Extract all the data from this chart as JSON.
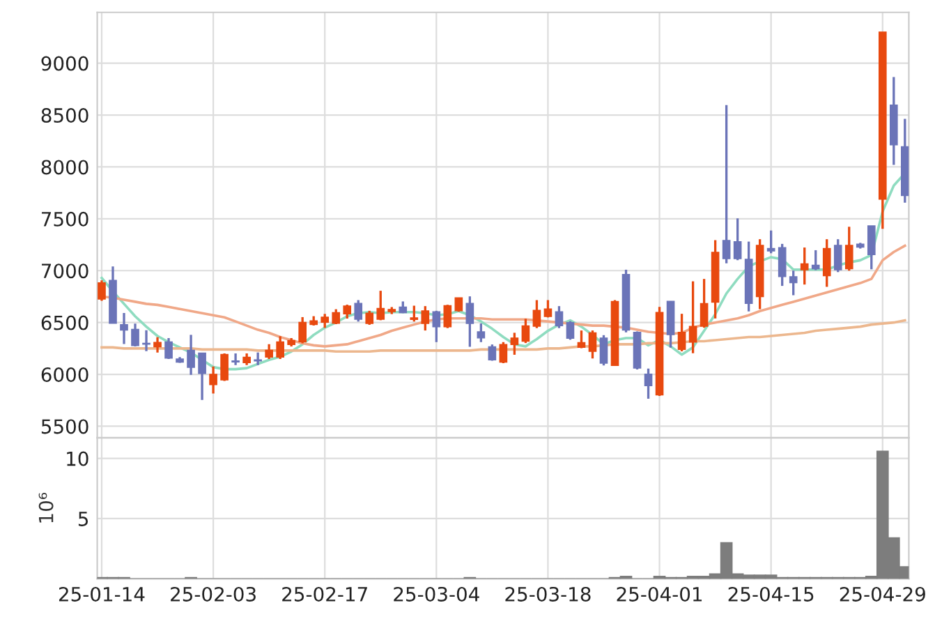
{
  "chart_data": [
    {
      "type": "candlestick",
      "categories": [
        null,
        null,
        null,
        null,
        null,
        null,
        null,
        null,
        null,
        null,
        null,
        null,
        null,
        null,
        null,
        null,
        null,
        null,
        null,
        null,
        null,
        null,
        null,
        null,
        null,
        null,
        null,
        null,
        null,
        null,
        null,
        null,
        null,
        null,
        null,
        null,
        null,
        null,
        null,
        null,
        null,
        null,
        null,
        null,
        null,
        null,
        null,
        null,
        null,
        null,
        null,
        null,
        null,
        null,
        null,
        null,
        null,
        null,
        null,
        null,
        null,
        null,
        null,
        null,
        null,
        null,
        null,
        null,
        null,
        null,
        null,
        null,
        null
      ],
      "ohlc": [
        [
          6726,
          6906,
          6709,
          6883
        ],
        [
          6906,
          7040,
          6493,
          6493
        ],
        [
          6480,
          6592,
          6292,
          6426
        ],
        [
          6435,
          6489,
          6269,
          6278
        ],
        [
          6300,
          6426,
          6224,
          6290
        ],
        [
          6265,
          6359,
          6211,
          6309
        ],
        [
          6314,
          6350,
          6148,
          6157
        ],
        [
          6148,
          6166,
          6112,
          6117
        ],
        [
          6233,
          6381,
          5996,
          6067
        ],
        [
          6206,
          6206,
          5753,
          6009
        ],
        [
          5901,
          6076,
          5816,
          6000
        ],
        [
          5946,
          6202,
          5937,
          6193
        ],
        [
          6130,
          6202,
          6090,
          6120
        ],
        [
          6112,
          6202,
          6090,
          6166
        ],
        [
          6140,
          6211,
          6090,
          6130
        ],
        [
          6166,
          6291,
          6148,
          6233
        ],
        [
          6166,
          6368,
          6148,
          6314
        ],
        [
          6287,
          6350,
          6269,
          6327
        ],
        [
          6314,
          6552,
          6300,
          6502
        ],
        [
          6480,
          6561,
          6471,
          6516
        ],
        [
          6502,
          6583,
          6448,
          6552
        ],
        [
          6493,
          6628,
          6484,
          6596
        ],
        [
          6583,
          6672,
          6538,
          6659
        ],
        [
          6685,
          6716,
          6509,
          6531
        ],
        [
          6491,
          6613,
          6478,
          6590
        ],
        [
          6531,
          6806,
          6522,
          6635
        ],
        [
          6604,
          6649,
          6581,
          6626
        ],
        [
          6649,
          6703,
          6590,
          6595
        ],
        [
          6530,
          6662,
          6509,
          6545
        ],
        [
          6491,
          6658,
          6423,
          6613
        ],
        [
          6604,
          6613,
          6311,
          6459
        ],
        [
          6459,
          6671,
          6446,
          6662
        ],
        [
          6613,
          6739,
          6604,
          6739
        ],
        [
          6685,
          6752,
          6266,
          6491
        ],
        [
          6410,
          6491,
          6311,
          6351
        ],
        [
          6266,
          6288,
          6131,
          6140
        ],
        [
          6117,
          6311,
          6108,
          6288
        ],
        [
          6288,
          6401,
          6189,
          6351
        ],
        [
          6320,
          6536,
          6302,
          6468
        ],
        [
          6464,
          6716,
          6446,
          6617
        ],
        [
          6558,
          6716,
          6549,
          6631
        ],
        [
          6604,
          6658,
          6446,
          6468
        ],
        [
          6500,
          6513,
          6334,
          6347
        ],
        [
          6261,
          6423,
          6252,
          6306
        ],
        [
          6221,
          6423,
          6153,
          6401
        ],
        [
          6351,
          6378,
          6086,
          6108
        ],
        [
          6086,
          6716,
          6086,
          6703
        ],
        [
          6964,
          7009,
          6405,
          6427
        ],
        [
          6405,
          6414,
          6047,
          6061
        ],
        [
          6002,
          6056,
          5765,
          5891
        ],
        [
          5801,
          6651,
          5792,
          6597
        ],
        [
          6705,
          6705,
          6258,
          6383
        ],
        [
          6240,
          6584,
          6222,
          6405
        ],
        [
          6311,
          6897,
          6204,
          6463
        ],
        [
          6463,
          6920,
          6450,
          6683
        ],
        [
          6696,
          7294,
          6539,
          7177
        ],
        [
          7291,
          8597,
          7070,
          7115
        ],
        [
          7280,
          7504,
          7101,
          7115
        ],
        [
          7110,
          7280,
          6607,
          6683
        ],
        [
          6750,
          7303,
          6629,
          7244
        ],
        [
          7213,
          7387,
          7168,
          7190
        ],
        [
          7223,
          7258,
          6853,
          6942
        ],
        [
          6942,
          7000,
          6763,
          6884
        ],
        [
          7008,
          7223,
          6866,
          7066
        ],
        [
          7053,
          7197,
          7005,
          7018
        ],
        [
          6951,
          7303,
          6844,
          7213
        ],
        [
          7244,
          7303,
          6986,
          7008
        ],
        [
          7018,
          7423,
          7000,
          7244
        ],
        [
          7255,
          7268,
          7213,
          7227
        ],
        [
          7432,
          7432,
          7013,
          7155
        ],
        [
          7689,
          9300,
          7403,
          9300
        ],
        [
          8597,
          8866,
          8020,
          8212
        ],
        [
          8195,
          8463,
          7656,
          7724
        ]
      ],
      "colors": [
        "#e8490f",
        "#6b74b8",
        "#6b74b8",
        "#6b74b8",
        "#6b74b8",
        "#e8490f",
        "#6b74b8",
        "#6b74b8",
        "#6b74b8",
        "#6b74b8",
        "#e8490f",
        "#e8490f",
        "#6b74b8",
        "#e8490f",
        "#6b74b8",
        "#e8490f",
        "#e8490f",
        "#e8490f",
        "#e8490f",
        "#e8490f",
        "#e8490f",
        "#e8490f",
        "#e8490f",
        "#6b74b8",
        "#e8490f",
        "#e8490f",
        "#e8490f",
        "#6b74b8",
        "#e8490f",
        "#e8490f",
        "#6b74b8",
        "#e8490f",
        "#e8490f",
        "#6b74b8",
        "#6b74b8",
        "#6b74b8",
        "#e8490f",
        "#e8490f",
        "#e8490f",
        "#e8490f",
        "#e8490f",
        "#6b74b8",
        "#6b74b8",
        "#e8490f",
        "#e8490f",
        "#6b74b8",
        "#e8490f",
        "#6b74b8",
        "#6b74b8",
        "#6b74b8",
        "#e8490f",
        "#6b74b8",
        "#e8490f",
        "#e8490f",
        "#e8490f",
        "#e8490f",
        "#6b74b8",
        "#6b74b8",
        "#6b74b8",
        "#e8490f",
        "#6b74b8",
        "#6b74b8",
        "#6b74b8",
        "#e8490f",
        "#6b74b8",
        "#e8490f",
        "#6b74b8",
        "#e8490f",
        "#6b74b8",
        "#6b74b8",
        "#e8490f",
        "#6b74b8",
        "#6b74b8"
      ],
      "series": [
        {
          "type": "line",
          "color": "#8fdcc0",
          "values": [
            6930,
            6800,
            6680,
            6560,
            6460,
            6370,
            6310,
            6260,
            6210,
            6140,
            6070,
            6050,
            6050,
            6060,
            6100,
            6140,
            6170,
            6220,
            6290,
            6380,
            6450,
            6500,
            6560,
            6590,
            6600,
            6590,
            6600,
            6600,
            6600,
            6590,
            6570,
            6580,
            6610,
            6570,
            6510,
            6440,
            6360,
            6290,
            6270,
            6340,
            6420,
            6480,
            6520,
            6460,
            6380,
            6290,
            6330,
            6350,
            6350,
            6280,
            6330,
            6270,
            6190,
            6260,
            6420,
            6580,
            6780,
            6920,
            7040,
            7090,
            7130,
            7110,
            7010,
            7010,
            7010,
            7010,
            7050,
            7080,
            7100,
            7150,
            7570,
            7820,
            7940
          ]
        },
        {
          "type": "line",
          "color": "#f0a888",
          "values": [
            6750,
            6740,
            6720,
            6700,
            6680,
            6670,
            6650,
            6630,
            6610,
            6590,
            6570,
            6550,
            6510,
            6470,
            6430,
            6400,
            6360,
            6330,
            6300,
            6280,
            6270,
            6280,
            6290,
            6320,
            6350,
            6380,
            6420,
            6450,
            6480,
            6510,
            6530,
            6540,
            6540,
            6540,
            6540,
            6530,
            6530,
            6530,
            6530,
            6520,
            6510,
            6500,
            6490,
            6480,
            6470,
            6470,
            6460,
            6450,
            6430,
            6410,
            6400,
            6390,
            6400,
            6450,
            6480,
            6500,
            6520,
            6540,
            6570,
            6610,
            6640,
            6670,
            6700,
            6730,
            6760,
            6790,
            6820,
            6850,
            6880,
            6920,
            7100,
            7180,
            7240
          ]
        },
        {
          "type": "line",
          "color": "#ecb78e",
          "values": [
            6260,
            6260,
            6250,
            6250,
            6250,
            6250,
            6250,
            6250,
            6250,
            6240,
            6240,
            6240,
            6240,
            6240,
            6230,
            6230,
            6230,
            6230,
            6230,
            6230,
            6230,
            6220,
            6220,
            6220,
            6220,
            6230,
            6230,
            6230,
            6230,
            6230,
            6230,
            6230,
            6230,
            6230,
            6240,
            6240,
            6240,
            6240,
            6240,
            6240,
            6250,
            6250,
            6260,
            6270,
            6270,
            6280,
            6290,
            6290,
            6290,
            6300,
            6300,
            6300,
            6310,
            6320,
            6320,
            6330,
            6340,
            6350,
            6360,
            6360,
            6370,
            6380,
            6390,
            6400,
            6420,
            6430,
            6440,
            6450,
            6460,
            6480,
            6490,
            6500,
            6520
          ]
        }
      ],
      "ylim": [
        5390,
        9490
      ],
      "yticks": [
        5500,
        6000,
        6500,
        7000,
        7500,
        8000,
        8500,
        9000
      ],
      "grid": true,
      "tick_labels": "y"
    },
    {
      "type": "bar",
      "categories": [
        "25-01-14",
        null,
        null,
        null,
        null,
        null,
        null,
        null,
        null,
        null,
        "25-02-03",
        null,
        null,
        null,
        null,
        null,
        null,
        null,
        null,
        null,
        "25-02-17",
        null,
        null,
        null,
        null,
        null,
        null,
        null,
        null,
        null,
        "25-03-04",
        null,
        null,
        null,
        null,
        null,
        null,
        null,
        null,
        null,
        "25-03-18",
        null,
        null,
        null,
        null,
        null,
        null,
        null,
        null,
        null,
        "25-04-01",
        null,
        null,
        null,
        null,
        null,
        null,
        null,
        null,
        null,
        "25-04-15",
        null,
        null,
        null,
        null,
        null,
        null,
        null,
        null,
        null,
        "25-04-29",
        null,
        null
      ],
      "values": [
        0.1,
        0.1,
        0.1,
        0,
        0,
        0,
        0,
        0,
        0.1,
        0,
        0,
        0,
        0,
        0,
        0,
        0,
        0,
        0,
        0,
        0,
        0,
        0,
        0,
        0,
        0,
        0,
        0,
        0,
        0,
        0,
        0,
        0,
        0,
        0.1,
        0,
        0,
        0,
        0,
        0,
        0,
        0,
        0,
        0,
        0,
        0,
        0,
        0.1,
        0.2,
        0,
        0,
        0.2,
        0.1,
        0.1,
        0.2,
        0.2,
        0.4,
        3.0,
        0.4,
        0.3,
        0.3,
        0.3,
        0.1,
        0.1,
        0.1,
        0.1,
        0.1,
        0.1,
        0.1,
        0.1,
        0.2,
        10.6,
        3.4,
        1.0
      ],
      "color": "#7d7d7d",
      "ylabel": "10⁶",
      "ylim": [
        0,
        11.7
      ],
      "yticks": [
        5,
        10
      ],
      "grid": true
    }
  ]
}
